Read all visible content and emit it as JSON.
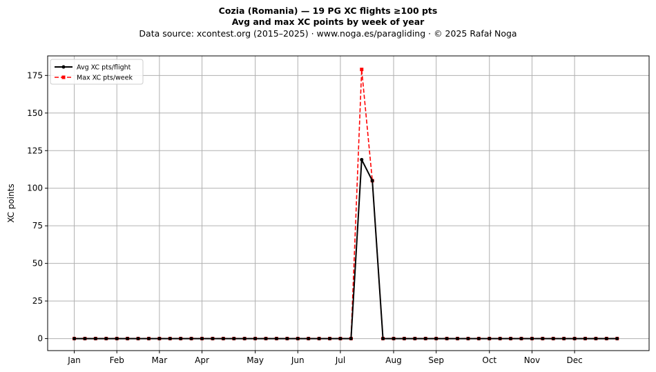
{
  "title_line1": "Cozia (Romania)  —  19 PG XC flights ≥100 pts",
  "title_line2": "Avg and max XC points by week of year",
  "subtitle": "Data source: xcontest.org (2015–2025)  ·  www.noga.es/paragliding  ·  © 2025 Rafał Noga",
  "chart_data": {
    "type": "line",
    "title": "Avg and max XC points by week of year",
    "xlabel": "",
    "ylabel": "XC points",
    "x": [
      1,
      2,
      3,
      4,
      5,
      6,
      7,
      8,
      9,
      10,
      11,
      12,
      13,
      14,
      15,
      16,
      17,
      18,
      19,
      20,
      21,
      22,
      23,
      24,
      25,
      26,
      27,
      28,
      29,
      30,
      31,
      32,
      33,
      34,
      35,
      36,
      37,
      38,
      39,
      40,
      41,
      42,
      43,
      44,
      45,
      46,
      47,
      48,
      49,
      50,
      51,
      52
    ],
    "xlim": [
      -1.5,
      55
    ],
    "ylim": [
      -8,
      188
    ],
    "yticks": [
      0,
      25,
      50,
      75,
      100,
      125,
      150,
      175
    ],
    "month_ticks": [
      {
        "label": "Jan",
        "week": 1
      },
      {
        "label": "Feb",
        "week": 5
      },
      {
        "label": "Mar",
        "week": 9
      },
      {
        "label": "Apr",
        "week": 13
      },
      {
        "label": "May",
        "week": 18
      },
      {
        "label": "Jun",
        "week": 22
      },
      {
        "label": "Jul",
        "week": 26
      },
      {
        "label": "Aug",
        "week": 31
      },
      {
        "label": "Sep",
        "week": 35
      },
      {
        "label": "Oct",
        "week": 40
      },
      {
        "label": "Nov",
        "week": 44
      },
      {
        "label": "Dec",
        "week": 48
      }
    ],
    "grid": true,
    "legend_position": "top-left",
    "series": [
      {
        "name": "Avg XC pts/flight",
        "color": "#000000",
        "style": "solid",
        "marker": "circle",
        "values": [
          0,
          0,
          0,
          0,
          0,
          0,
          0,
          0,
          0,
          0,
          0,
          0,
          0,
          0,
          0,
          0,
          0,
          0,
          0,
          0,
          0,
          0,
          0,
          0,
          0,
          0,
          0,
          119,
          105,
          0,
          0,
          0,
          0,
          0,
          0,
          0,
          0,
          0,
          0,
          0,
          0,
          0,
          0,
          0,
          0,
          0,
          0,
          0,
          0,
          0,
          0,
          0
        ]
      },
      {
        "name": "Max XC pts/week",
        "color": "#ff0000",
        "style": "dashed",
        "marker": "square",
        "values": [
          0,
          0,
          0,
          0,
          0,
          0,
          0,
          0,
          0,
          0,
          0,
          0,
          0,
          0,
          0,
          0,
          0,
          0,
          0,
          0,
          0,
          0,
          0,
          0,
          0,
          0,
          0,
          179,
          105,
          0,
          0,
          0,
          0,
          0,
          0,
          0,
          0,
          0,
          0,
          0,
          0,
          0,
          0,
          0,
          0,
          0,
          0,
          0,
          0,
          0,
          0,
          0
        ]
      }
    ]
  }
}
